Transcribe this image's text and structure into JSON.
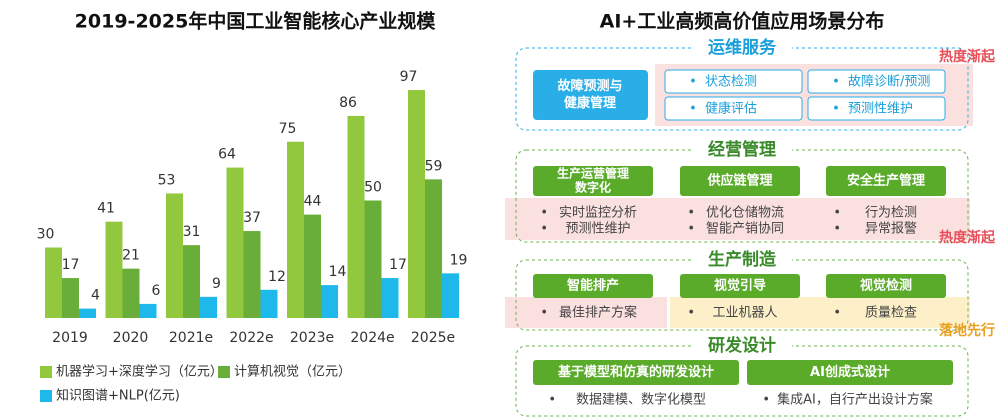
{
  "chart_data": {
    "type": "bar",
    "title": "2019-2025年中国工业智能核心产业规模",
    "categories": [
      "2019",
      "2020",
      "2021e",
      "2022e",
      "2023e",
      "2024e",
      "2025e"
    ],
    "series": [
      {
        "name": "机器学习+深度学习（亿元）",
        "color": "#92c83e",
        "values": [
          30,
          41,
          53,
          64,
          75,
          86,
          97
        ]
      },
      {
        "name": "计算机视觉（亿元）",
        "color": "#6aae3a",
        "values": [
          17,
          21,
          31,
          37,
          44,
          50,
          59
        ]
      },
      {
        "name": "知识图谱+NLP(亿元)",
        "color": "#1fb8ea",
        "values": [
          4,
          6,
          9,
          12,
          14,
          17,
          19
        ]
      }
    ]
  },
  "diagram": {
    "title": "AI+工业高频高价值应用场景分布",
    "sections": [
      {
        "title": "运维服务",
        "tag": "热度渐起",
        "hub": [
          "故障预测与",
          "健康管理"
        ],
        "items": [
          "状态检测",
          "故障诊断/预测",
          "健康评估",
          "预测性维护"
        ]
      },
      {
        "title": "经营管理",
        "tag": "热度渐起",
        "columns": [
          {
            "header": [
              "生产运营管理",
              "数字化"
            ],
            "bullets": [
              "实时监控分析",
              "预测性维护"
            ]
          },
          {
            "header": [
              "供应链管理"
            ],
            "bullets": [
              "优化仓储物流",
              "智能产销协同"
            ]
          },
          {
            "header": [
              "安全生产管理"
            ],
            "bullets": [
              "行为检测",
              "异常报警"
            ]
          }
        ]
      },
      {
        "title": "生产制造",
        "tag": "落地先行",
        "columns": [
          {
            "header": [
              "智能排产"
            ],
            "bullets": [
              "最佳排产方案"
            ]
          },
          {
            "header": [
              "视觉引导"
            ],
            "bullets": [
              "工业机器人"
            ]
          },
          {
            "header": [
              "视觉检测"
            ],
            "bullets": [
              "质量检查"
            ]
          }
        ]
      },
      {
        "title": "研发设计",
        "columns": [
          {
            "header": [
              "基于模型和仿真的研发设计"
            ],
            "bullets": [
              "数据建模、数字化模型"
            ]
          },
          {
            "header": [
              "AI创成式设计"
            ],
            "bullets": [
              "集成AI，自行产出设计方案"
            ]
          }
        ]
      }
    ]
  }
}
